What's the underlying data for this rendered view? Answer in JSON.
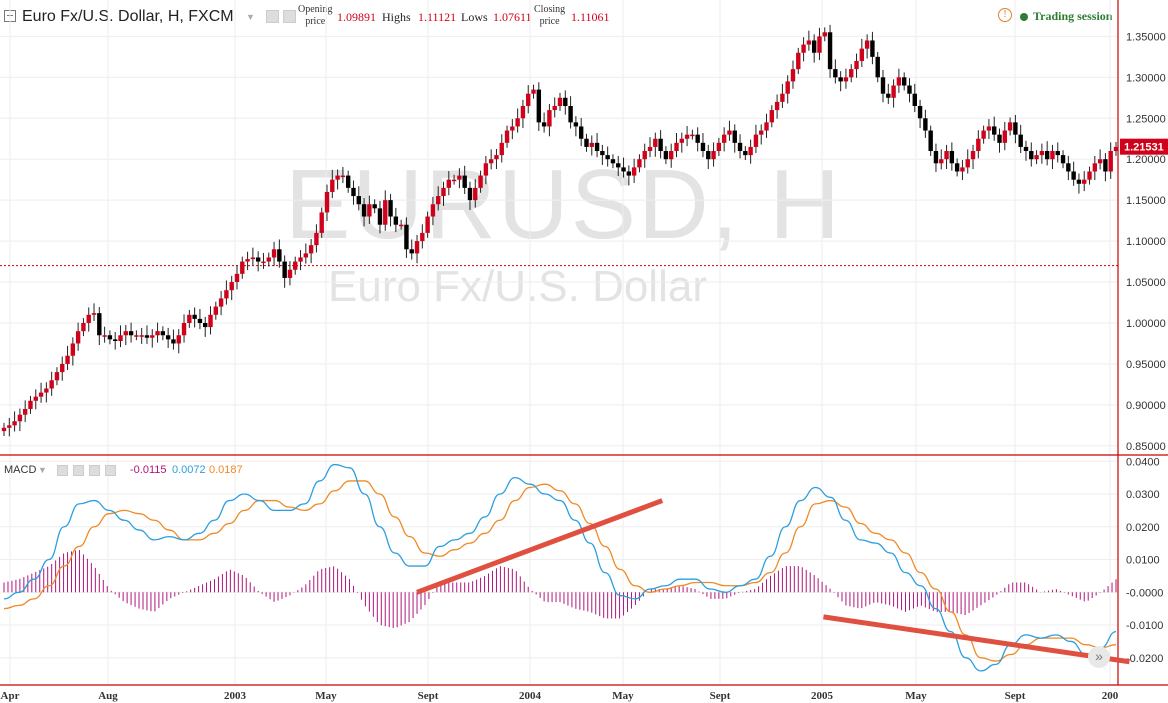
{
  "header": {
    "title": "Euro Fx/U.S. Dollar, H, FXCM",
    "open_label_1": "Opening",
    "open_label_2": "price",
    "open_value": "1.09891",
    "high_label": "Highs",
    "high_value": "1.11121",
    "low_label": "Lows",
    "low_value": "1.07611",
    "close_label_1": "Closing",
    "close_label_2": "price",
    "close_value": "1.11061",
    "session_label": "Trading session"
  },
  "watermark": {
    "symbol": "EURUSD, H",
    "name": "Euro Fx/U.S. Dollar"
  },
  "macd": {
    "label": "MACD",
    "hist_value": "-0.0115",
    "macd_value": "0.0072",
    "signal_value": "0.0187"
  },
  "colors": {
    "up": "#d0021b",
    "down": "#000000",
    "macd_line": "#2b9fde",
    "signal_line": "#f08a24",
    "histogram": "#b0157a",
    "trendline": "#e05040",
    "price_tag": "#d0021b"
  },
  "chart_data": [
    {
      "type": "candlestick",
      "title": "Euro Fx/U.S. Dollar, H, FXCM",
      "ylim": [
        0.84,
        1.37
      ],
      "y_ticks": [
        "1.35000",
        "1.30000",
        "1.25000",
        "1.20000",
        "1.15000",
        "1.10000",
        "1.05000",
        "1.00000",
        "0.95000",
        "0.90000",
        "0.85000"
      ],
      "x_ticks": [
        "Apr",
        "Aug",
        "2003",
        "May",
        "Sept",
        "2004",
        "May",
        "Sept",
        "2005",
        "May",
        "Sept",
        "200"
      ],
      "last_price_label": "1.21531",
      "reference_line": 1.07,
      "closes": [
        0.872,
        0.875,
        0.88,
        0.888,
        0.895,
        0.905,
        0.91,
        0.915,
        0.92,
        0.93,
        0.94,
        0.95,
        0.96,
        0.975,
        0.99,
        1.0,
        1.01,
        1.012,
        0.985,
        0.985,
        0.98,
        0.978,
        0.985,
        0.99,
        0.985,
        0.985,
        0.985,
        0.982,
        0.985,
        0.99,
        0.985,
        0.98,
        0.975,
        0.985,
        1.0,
        1.01,
        1.005,
        1.0,
        0.995,
        1.01,
        1.02,
        1.03,
        1.04,
        1.05,
        1.06,
        1.075,
        1.078,
        1.08,
        1.075,
        1.075,
        1.08,
        1.09,
        1.075,
        1.055,
        1.065,
        1.075,
        1.08,
        1.085,
        1.095,
        1.11,
        1.135,
        1.16,
        1.175,
        1.18,
        1.18,
        1.165,
        1.155,
        1.145,
        1.13,
        1.145,
        1.14,
        1.12,
        1.15,
        1.13,
        1.12,
        1.12,
        1.09,
        1.085,
        1.1,
        1.11,
        1.13,
        1.145,
        1.155,
        1.165,
        1.175,
        1.175,
        1.18,
        1.165,
        1.15,
        1.165,
        1.18,
        1.195,
        1.2,
        1.205,
        1.22,
        1.235,
        1.24,
        1.25,
        1.265,
        1.28,
        1.285,
        1.245,
        1.24,
        1.26,
        1.265,
        1.275,
        1.265,
        1.245,
        1.24,
        1.225,
        1.215,
        1.22,
        1.21,
        1.205,
        1.2,
        1.195,
        1.19,
        1.185,
        1.18,
        1.19,
        1.2,
        1.21,
        1.215,
        1.225,
        1.21,
        1.2,
        1.21,
        1.22,
        1.225,
        1.23,
        1.23,
        1.22,
        1.21,
        1.2,
        1.21,
        1.22,
        1.23,
        1.235,
        1.22,
        1.21,
        1.205,
        1.215,
        1.23,
        1.235,
        1.245,
        1.26,
        1.27,
        1.28,
        1.295,
        1.31,
        1.33,
        1.34,
        1.345,
        1.33,
        1.35,
        1.355,
        1.31,
        1.3,
        1.295,
        1.3,
        1.31,
        1.32,
        1.335,
        1.345,
        1.325,
        1.3,
        1.28,
        1.275,
        1.29,
        1.3,
        1.29,
        1.28,
        1.265,
        1.25,
        1.235,
        1.21,
        1.195,
        1.2,
        1.21,
        1.195,
        1.185,
        1.19,
        1.2,
        1.21,
        1.225,
        1.235,
        1.24,
        1.23,
        1.22,
        1.235,
        1.245,
        1.23,
        1.215,
        1.21,
        1.2,
        1.205,
        1.21,
        1.2,
        1.21,
        1.205,
        1.195,
        1.185,
        1.175,
        1.17,
        1.175,
        1.185,
        1.195,
        1.2,
        1.185,
        1.21,
        1.215
      ]
    },
    {
      "type": "line",
      "title": "MACD",
      "ylim": [
        -0.028,
        0.041
      ],
      "y_ticks": [
        "0.0400",
        "0.0300",
        "0.0200",
        "0.0100",
        "-0.0000",
        "-0.0100",
        "-0.0200"
      ],
      "series": [
        {
          "name": "MACD",
          "key": "macd",
          "values": [
            -0.002,
            0.0,
            0.004,
            0.01,
            0.02,
            0.027,
            0.028,
            0.025,
            0.022,
            0.019,
            0.016,
            0.017,
            0.016,
            0.018,
            0.022,
            0.028,
            0.03,
            0.028,
            0.025,
            0.025,
            0.027,
            0.034,
            0.039,
            0.038,
            0.03,
            0.02,
            0.012,
            0.008,
            0.008,
            0.014,
            0.016,
            0.018,
            0.023,
            0.03,
            0.035,
            0.033,
            0.03,
            0.028,
            0.022,
            0.015,
            0.006,
            -0.001,
            -0.002,
            0.001,
            0.002,
            0.004,
            0.004,
            0.001,
            0.0,
            0.002,
            0.004,
            0.011,
            0.02,
            0.028,
            0.032,
            0.029,
            0.022,
            0.016,
            0.015,
            0.012,
            0.006,
            0.002,
            -0.005,
            -0.012,
            -0.02,
            -0.024,
            -0.022,
            -0.016,
            -0.013,
            -0.014,
            -0.013,
            -0.015,
            -0.019,
            -0.017,
            -0.012
          ]
        },
        {
          "name": "Signal",
          "key": "signal",
          "values": [
            -0.005,
            -0.004,
            -0.002,
            0.002,
            0.008,
            0.014,
            0.02,
            0.024,
            0.025,
            0.024,
            0.022,
            0.019,
            0.016,
            0.016,
            0.018,
            0.021,
            0.025,
            0.028,
            0.028,
            0.026,
            0.025,
            0.027,
            0.031,
            0.034,
            0.034,
            0.03,
            0.023,
            0.017,
            0.012,
            0.011,
            0.013,
            0.015,
            0.018,
            0.022,
            0.028,
            0.032,
            0.033,
            0.031,
            0.027,
            0.021,
            0.014,
            0.007,
            0.002,
            0.0,
            0.001,
            0.002,
            0.003,
            0.003,
            0.002,
            0.002,
            0.003,
            0.006,
            0.012,
            0.02,
            0.027,
            0.028,
            0.026,
            0.021,
            0.018,
            0.016,
            0.012,
            0.006,
            0.001,
            -0.006,
            -0.013,
            -0.02,
            -0.021,
            -0.019,
            -0.016,
            -0.014,
            -0.014,
            -0.014,
            -0.016,
            -0.017,
            -0.016
          ]
        },
        {
          "name": "Histogram",
          "key": "hist",
          "values": [
            0.003,
            0.004,
            0.006,
            0.008,
            0.012,
            0.013,
            0.008,
            0.001,
            -0.003,
            -0.005,
            -0.006,
            -0.002,
            0.0,
            0.002,
            0.004,
            0.007,
            0.005,
            0.0,
            -0.003,
            -0.001,
            0.002,
            0.007,
            0.008,
            0.004,
            -0.004,
            -0.01,
            -0.011,
            -0.009,
            -0.004,
            0.003,
            0.003,
            0.003,
            0.005,
            0.008,
            0.007,
            0.001,
            -0.003,
            -0.003,
            -0.005,
            -0.006,
            -0.008,
            -0.008,
            -0.004,
            0.001,
            0.001,
            0.002,
            0.001,
            -0.002,
            -0.002,
            0.0,
            0.001,
            0.005,
            0.008,
            0.008,
            0.005,
            0.001,
            -0.004,
            -0.005,
            -0.003,
            -0.004,
            -0.006,
            -0.004,
            -0.006,
            -0.006,
            -0.007,
            -0.004,
            -0.001,
            0.003,
            0.003,
            0.0,
            0.001,
            -0.001,
            -0.003,
            0.0,
            0.004
          ]
        }
      ],
      "trendlines": [
        {
          "from": [
            0.357,
            -0.0
          ],
          "to": [
            0.567,
            0.028
          ]
        },
        {
          "from": [
            0.705,
            -0.0075
          ],
          "to": [
            0.967,
            -0.0212
          ]
        }
      ]
    }
  ]
}
